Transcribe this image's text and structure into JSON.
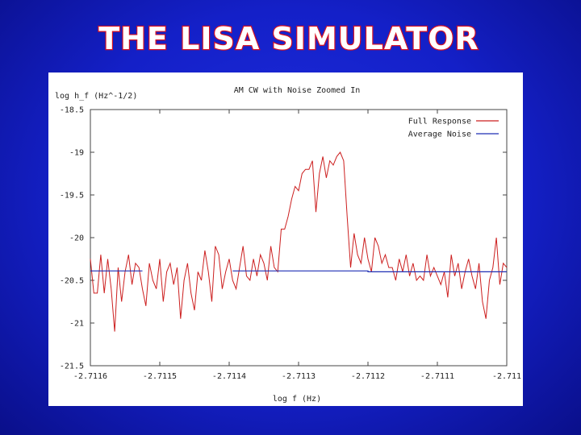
{
  "slide": {
    "title": "THE LISA SIMULATOR",
    "colors": {
      "background": "#1420c8",
      "title_fill": "#ffffff",
      "title_outline": "#d81020"
    }
  },
  "chart_data": {
    "type": "line",
    "title": "AM CW with Noise Zoomed In",
    "xlabel": "log f (Hz)",
    "ylabel": "log h_f (Hz^-1/2)",
    "xlim": [
      -2.7116,
      -2.711
    ],
    "ylim": [
      -21.5,
      -18.5
    ],
    "x_ticks": [
      -2.7116,
      -2.7115,
      -2.7114,
      -2.7113,
      -2.7112,
      -2.7111,
      -2.711
    ],
    "x_tick_labels": [
      "-2.7116",
      "-2.7115",
      "-2.7114",
      "-2.7113",
      "-2.7112",
      "-2.7111",
      "-2.711"
    ],
    "y_ticks": [
      -18.5,
      -19,
      -19.5,
      -20,
      -20.5,
      -21,
      -21.5
    ],
    "y_tick_labels": [
      "-18.5",
      "-19",
      "-19.5",
      "-20",
      "-20.5",
      "-21",
      "-21.5"
    ],
    "legend_position": "top-right",
    "grid": false,
    "series": [
      {
        "name": "Full Response",
        "color": "#cc1f1f",
        "x": [
          -2.7116,
          -2.711595,
          -2.71159,
          -2.711585,
          -2.71158,
          -2.711575,
          -2.71157,
          -2.711565,
          -2.71156,
          -2.711555,
          -2.71155,
          -2.711545,
          -2.71154,
          -2.711535,
          -2.71153,
          -2.711525,
          -2.71152,
          -2.711515,
          -2.71151,
          -2.711505,
          -2.7115,
          -2.711495,
          -2.71149,
          -2.711485,
          -2.71148,
          -2.711475,
          -2.71147,
          -2.711465,
          -2.71146,
          -2.711455,
          -2.71145,
          -2.711445,
          -2.71144,
          -2.711435,
          -2.71143,
          -2.711425,
          -2.71142,
          -2.711415,
          -2.71141,
          -2.711405,
          -2.7114,
          -2.711395,
          -2.71139,
          -2.711385,
          -2.71138,
          -2.711375,
          -2.71137,
          -2.711365,
          -2.71136,
          -2.711355,
          -2.71135,
          -2.711345,
          -2.71134,
          -2.711335,
          -2.71133,
          -2.711325,
          -2.71132,
          -2.711315,
          -2.71131,
          -2.711305,
          -2.7113,
          -2.711295,
          -2.71129,
          -2.711285,
          -2.71128,
          -2.711275,
          -2.71127,
          -2.711265,
          -2.71126,
          -2.711255,
          -2.71125,
          -2.711245,
          -2.71124,
          -2.711235,
          -2.71123,
          -2.711225,
          -2.71122,
          -2.711215,
          -2.71121,
          -2.711205,
          -2.7112,
          -2.711195,
          -2.71119,
          -2.711185,
          -2.71118,
          -2.711175,
          -2.71117,
          -2.711165,
          -2.71116,
          -2.711155,
          -2.71115,
          -2.711145,
          -2.71114,
          -2.711135,
          -2.71113,
          -2.711125,
          -2.71112,
          -2.711115,
          -2.71111,
          -2.711105,
          -2.7111,
          -2.711095,
          -2.71109,
          -2.711085,
          -2.71108,
          -2.711075,
          -2.71107,
          -2.711065,
          -2.71106,
          -2.711055,
          -2.71105,
          -2.711045,
          -2.71104,
          -2.711035,
          -2.71103,
          -2.711025,
          -2.71102,
          -2.711015,
          -2.71101,
          -2.711005,
          -2.711
        ],
        "y": [
          -20.25,
          -20.65,
          -20.65,
          -20.2,
          -20.65,
          -20.25,
          -20.6,
          -21.1,
          -20.35,
          -20.75,
          -20.4,
          -20.2,
          -20.55,
          -20.3,
          -20.35,
          -20.6,
          -20.8,
          -20.3,
          -20.5,
          -20.6,
          -20.25,
          -20.75,
          -20.4,
          -20.3,
          -20.55,
          -20.35,
          -20.95,
          -20.5,
          -20.3,
          -20.65,
          -20.85,
          -20.4,
          -20.5,
          -20.15,
          -20.4,
          -20.75,
          -20.1,
          -20.2,
          -20.6,
          -20.4,
          -20.25,
          -20.5,
          -20.6,
          -20.35,
          -20.1,
          -20.45,
          -20.5,
          -20.25,
          -20.45,
          -20.2,
          -20.3,
          -20.5,
          -20.1,
          -20.35,
          -20.4,
          -19.9,
          -19.9,
          -19.75,
          -19.55,
          -19.4,
          -19.45,
          -19.25,
          -19.2,
          -19.2,
          -19.1,
          -19.7,
          -19.25,
          -19.05,
          -19.3,
          -19.1,
          -19.15,
          -19.05,
          -19.0,
          -19.1,
          -19.75,
          -20.35,
          -19.95,
          -20.2,
          -20.3,
          -20.0,
          -20.25,
          -20.4,
          -20.0,
          -20.1,
          -20.3,
          -20.2,
          -20.35,
          -20.35,
          -20.5,
          -20.25,
          -20.4,
          -20.2,
          -20.45,
          -20.3,
          -20.5,
          -20.45,
          -20.5,
          -20.2,
          -20.45,
          -20.35,
          -20.45,
          -20.55,
          -20.4,
          -20.7,
          -20.2,
          -20.45,
          -20.3,
          -20.6,
          -20.4,
          -20.25,
          -20.45,
          -20.6,
          -20.3,
          -20.75,
          -20.95,
          -20.5,
          -20.35,
          -20.0,
          -20.55,
          -20.3,
          -20.35
        ]
      },
      {
        "name": "Average Noise",
        "color": "#1f2fb4",
        "x": [
          -2.7116,
          -2.711525,
          -2.711525,
          -2.711395,
          -2.711395,
          -2.71135,
          -2.71135,
          -2.7112,
          -2.7112,
          -2.711
        ],
        "y": [
          -20.39,
          -20.39,
          null,
          null,
          -20.39,
          -20.39,
          -20.39,
          -20.39,
          -20.4,
          -20.4
        ]
      }
    ]
  }
}
